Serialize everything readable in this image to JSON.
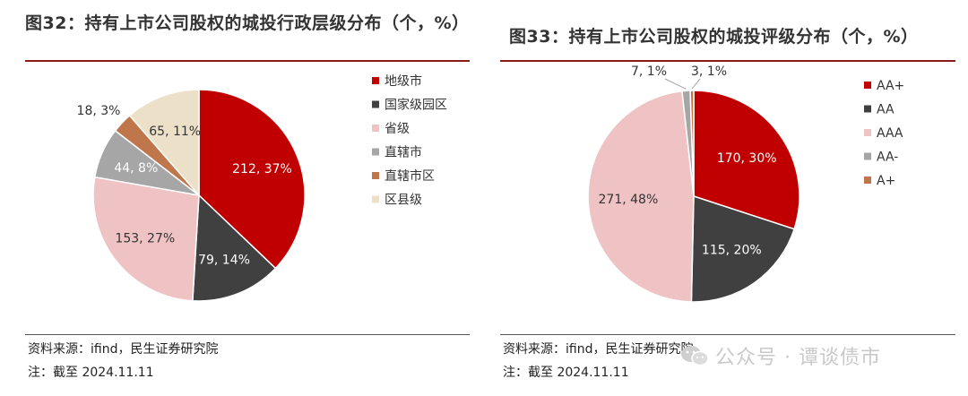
{
  "chart_data": [
    {
      "type": "pie",
      "title": "图32：持有上市公司股权的城投行政层级分布（个，%）",
      "categories": [
        "地级市",
        "国家级园区",
        "省级",
        "直辖市",
        "直辖市区",
        "区县级"
      ],
      "values": [
        212,
        79,
        153,
        44,
        18,
        65
      ],
      "percents": [
        "37%",
        "14%",
        "27%",
        "8%",
        "3%",
        "11%"
      ],
      "data_labels": [
        "212, 37%",
        "79, 14%",
        "153, 27%",
        "44, 8%",
        "18, 3%",
        "65, 11%"
      ],
      "colors": [
        "#c00000",
        "#404040",
        "#efc3c3",
        "#a6a6a6",
        "#c0764b",
        "#ede0c8"
      ],
      "label_colors": [
        "#ffffff",
        "#ffffff",
        "#333333",
        "#ffffff",
        "#333333",
        "#333333"
      ],
      "legend_position": "right",
      "source": "资料来源：ifind，民生证券研究院",
      "note": "注：截至 2024.11.11"
    },
    {
      "type": "pie",
      "title": "图33：持有上市公司股权的城投评级分布（个，%）",
      "categories": [
        "AA+",
        "AA",
        "AAA",
        "AA-",
        "A+"
      ],
      "values": [
        170,
        115,
        271,
        7,
        3
      ],
      "percents": [
        "30%",
        "20%",
        "48%",
        "1%",
        "1%"
      ],
      "data_labels": [
        "170, 30%",
        "115, 20%",
        "271, 48%",
        "7, 1%",
        "3, 1%"
      ],
      "colors": [
        "#c00000",
        "#404040",
        "#efc3c3",
        "#a6a6a6",
        "#c0764b"
      ],
      "label_colors": [
        "#ffffff",
        "#ffffff",
        "#333333",
        "#333333",
        "#333333"
      ],
      "legend_position": "right",
      "source": "资料来源：ifind，民生证券研究院",
      "note": "注：截至 2024.11.11"
    }
  ],
  "watermark": "公众号 · 谭谈债市",
  "watermark_icon": "wechat-icon"
}
